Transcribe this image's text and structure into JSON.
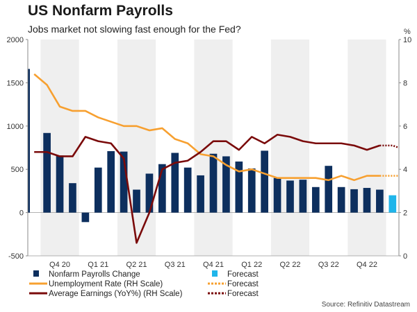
{
  "title": "US Nonfarm Payrolls",
  "subtitle": "Jobs market not slowing fast enough for the Fed?",
  "source": "Source: Refinitiv Datastream",
  "colors": {
    "bars": "#0d2f5e",
    "forecast_bar": "#1fb5ea",
    "unemployment": "#f7a030",
    "earnings": "#7a0a0a",
    "shade": "#efefef"
  },
  "chart_data": {
    "type": "bar+line",
    "title": "US Nonfarm Payrolls",
    "left_axis": {
      "ylim": [
        -500,
        2000
      ],
      "ticks": [
        "-500",
        "0",
        "500",
        "1000",
        "1500",
        "2000"
      ]
    },
    "right_axis": {
      "label": "%",
      "ylim": [
        0,
        10
      ],
      "ticks": [
        "0",
        "2",
        "4",
        "6",
        "8",
        "10"
      ]
    },
    "x_ticks": [
      "Q4 20",
      "Q1 21",
      "Q2 21",
      "Q3 21",
      "Q4 21",
      "Q1 22",
      "Q2 22",
      "Q3 22",
      "Q4 22"
    ],
    "series": [
      {
        "name": "Nonfarm Payrolls Change",
        "type": "bar",
        "axis": "left",
        "values": [
          1660,
          920,
          660,
          340,
          -110,
          520,
          710,
          705,
          265,
          450,
          560,
          690,
          520,
          430,
          680,
          650,
          590,
          510,
          715,
          400,
          370,
          380,
          295,
          540,
          295,
          270,
          285,
          265
        ],
        "forecast": 200
      },
      {
        "name": "Unemployment Rate (RH Scale)",
        "type": "line",
        "axis": "right",
        "values": [
          8.4,
          7.9,
          6.9,
          6.7,
          6.7,
          6.4,
          6.2,
          6.0,
          6.0,
          5.8,
          5.9,
          5.4,
          5.2,
          4.7,
          4.6,
          4.2,
          3.9,
          4.0,
          3.8,
          3.6,
          3.6,
          3.6,
          3.6,
          3.5,
          3.7,
          3.5,
          3.7,
          3.7
        ],
        "forecast": [
          3.7,
          3.7
        ]
      },
      {
        "name": "Average Earnings (YoY%) (RH Scale)",
        "type": "line",
        "axis": "right",
        "values": [
          4.8,
          4.8,
          4.6,
          4.6,
          5.5,
          5.3,
          5.2,
          4.5,
          0.6,
          2.0,
          4.0,
          4.3,
          4.4,
          4.8,
          5.3,
          5.3,
          4.9,
          5.5,
          5.2,
          5.6,
          5.5,
          5.3,
          5.2,
          5.2,
          5.2,
          5.1,
          4.9,
          5.1
        ],
        "forecast": [
          5.1,
          5.0
        ]
      }
    ],
    "legend": [
      {
        "label": "Nonfarm Payrolls Change",
        "marker": "bar"
      },
      {
        "label": "Forecast",
        "marker": "forecast-bar"
      },
      {
        "label": "Unemployment Rate (RH Scale)",
        "marker": "line-orange"
      },
      {
        "label": "Forecast",
        "marker": "dotted-orange"
      },
      {
        "label": "Average Earnings (YoY%) (RH Scale)",
        "marker": "line-red"
      },
      {
        "label": "Forecast",
        "marker": "dotted-red"
      }
    ]
  }
}
